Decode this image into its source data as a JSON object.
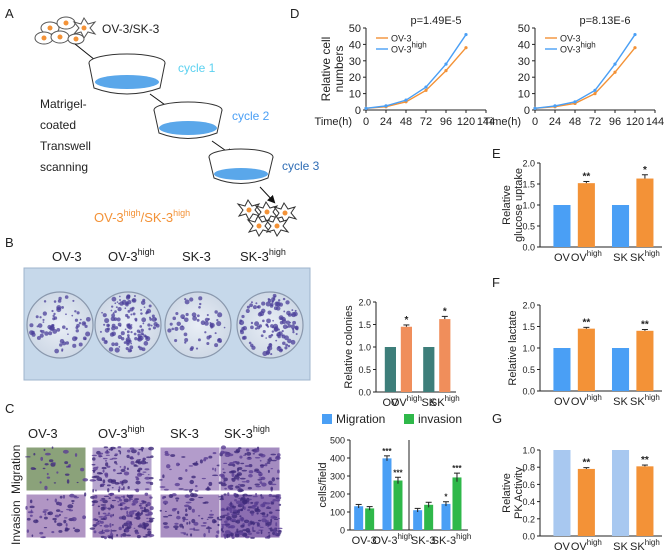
{
  "panels": {
    "A": "A",
    "B": "B",
    "C": "C",
    "D": "D",
    "E": "E",
    "F": "F",
    "G": "G"
  },
  "colors": {
    "blue": "#4a9ff5",
    "orange": "#f39237",
    "green": "#2fb84a",
    "teal": "#3d7e7a",
    "salmon": "#f08e5b",
    "lightblue": "#a8c8f0",
    "cyan": "#5bd1f0",
    "panelBg": "#c6d8ea"
  },
  "panelA": {
    "top_label": "OV-3/SK-3",
    "cycles": [
      "cycle 1",
      "cycle 2",
      "cycle 3"
    ],
    "side_text": [
      "Matrigel-",
      "coated",
      "Transwell",
      "scanning"
    ],
    "bottom_main": "OV-3",
    "bottom_sup": "high",
    "bottom_sep": "/SK-3",
    "bottom_sup2": "high"
  },
  "panelB": {
    "labels": [
      {
        "main": "OV-3",
        "sup": ""
      },
      {
        "main": "OV-3",
        "sup": "high"
      },
      {
        "main": "SK-3",
        "sup": ""
      },
      {
        "main": "SK-3",
        "sup": "high"
      }
    ]
  },
  "panelC": {
    "col_labels": [
      {
        "main": "OV-3",
        "sup": ""
      },
      {
        "main": "OV-3",
        "sup": "high"
      },
      {
        "main": "SK-3",
        "sup": ""
      },
      {
        "main": "SK-3",
        "sup": "high"
      }
    ],
    "row_labels": [
      "Migration",
      "Invasion"
    ]
  },
  "chart_data": [
    {
      "id": "B",
      "type": "bar",
      "ylabel": "Relative colonies",
      "ylim": [
        0,
        2
      ],
      "yticks": [
        "0.0",
        "0.5",
        "1.0",
        "1.5",
        "2.0"
      ],
      "categories": [
        {
          "main": "OV",
          "sup": ""
        },
        {
          "main": "OV",
          "sup": "high"
        },
        {
          "main": "SK",
          "sup": ""
        },
        {
          "main": "SK",
          "sup": "high"
        }
      ],
      "values": [
        1.0,
        1.45,
        1.0,
        1.62
      ],
      "errors": [
        0,
        0.04,
        0,
        0.06
      ],
      "sig": [
        "",
        "*",
        "",
        "*"
      ]
    },
    {
      "id": "C",
      "type": "bar",
      "ylabel": "cells/field",
      "ylim": [
        0,
        500
      ],
      "yticks": [
        "0",
        "100",
        "200",
        "300",
        "400",
        "500"
      ],
      "legend": [
        "Migration",
        "invasion"
      ],
      "categories": [
        {
          "main": "OV-3",
          "sup": ""
        },
        {
          "main": "OV-3",
          "sup": "high"
        },
        {
          "main": "SK-3",
          "sup": ""
        },
        {
          "main": "SK-3",
          "sup": "high"
        }
      ],
      "series": [
        {
          "name": "Migration",
          "values": [
            132,
            398,
            110,
            145
          ],
          "errors": [
            10,
            14,
            10,
            12
          ],
          "sig": [
            "",
            "***",
            "",
            "*"
          ]
        },
        {
          "name": "invasion",
          "values": [
            120,
            275,
            140,
            292
          ],
          "errors": [
            10,
            18,
            14,
            24
          ],
          "sig": [
            "",
            "***",
            "",
            "***"
          ]
        }
      ]
    },
    {
      "id": "D1",
      "type": "line",
      "title": "p=1.49E-5",
      "ylabel": "Relative cell numbers",
      "xlabel": "Time(h)",
      "x": [
        0,
        24,
        48,
        72,
        96,
        120
      ],
      "xticks": [
        "0",
        "24",
        "48",
        "72",
        "96",
        "120",
        "144"
      ],
      "xlim": [
        0,
        144
      ],
      "ylim": [
        0,
        50
      ],
      "yticks": [
        "0",
        "10",
        "20",
        "30",
        "40",
        "50"
      ],
      "series": [
        {
          "name": "OV-3",
          "sup": "",
          "values": [
            1,
            2,
            5,
            12,
            24,
            38
          ]
        },
        {
          "name": "OV-3",
          "sup": "high",
          "values": [
            1,
            2.5,
            6,
            14,
            28,
            46
          ]
        }
      ]
    },
    {
      "id": "D2",
      "type": "line",
      "title": "p=8.13E-6",
      "xlabel": "Time(h)",
      "x": [
        0,
        24,
        48,
        72,
        96,
        120
      ],
      "xticks": [
        "0",
        "24",
        "48",
        "72",
        "96",
        "120",
        "144"
      ],
      "xlim": [
        0,
        144
      ],
      "ylim": [
        0,
        50
      ],
      "yticks": [
        "0",
        "10",
        "20",
        "30",
        "40",
        "50"
      ],
      "series": [
        {
          "name": "OV-3",
          "sup": "",
          "values": [
            1,
            2,
            4,
            10,
            23,
            38
          ]
        },
        {
          "name": "OV-3",
          "sup": "high",
          "values": [
            1,
            2.5,
            5,
            12,
            28,
            46
          ]
        }
      ]
    },
    {
      "id": "E",
      "type": "bar",
      "ylabel": "Relative glucose uptake",
      "ylim": [
        0,
        2
      ],
      "yticks": [
        "0.0",
        "0.5",
        "1.0",
        "1.5",
        "2.0"
      ],
      "categories": [
        {
          "main": "OV",
          "sup": ""
        },
        {
          "main": "OV",
          "sup": "high"
        },
        {
          "main": "SK",
          "sup": ""
        },
        {
          "main": "SK",
          "sup": "high"
        }
      ],
      "values": [
        1.0,
        1.52,
        1.0,
        1.63
      ],
      "errors": [
        0,
        0.04,
        0,
        0.09
      ],
      "sig": [
        "",
        "**",
        "",
        "*"
      ]
    },
    {
      "id": "F",
      "type": "bar",
      "ylabel": "Relative lactate",
      "ylim": [
        0,
        2
      ],
      "yticks": [
        "0.0",
        "0.5",
        "1.0",
        "1.5",
        "2.0"
      ],
      "categories": [
        {
          "main": "OV",
          "sup": ""
        },
        {
          "main": "OV",
          "sup": "high"
        },
        {
          "main": "SK",
          "sup": ""
        },
        {
          "main": "SK",
          "sup": "high"
        }
      ],
      "values": [
        1.0,
        1.45,
        1.0,
        1.4
      ],
      "errors": [
        0,
        0.03,
        0,
        0.03
      ],
      "sig": [
        "",
        "**",
        "",
        "**"
      ]
    },
    {
      "id": "G",
      "type": "bar",
      "ylabel": "Relative PK Activity",
      "ylim": [
        0,
        1
      ],
      "yticks": [
        "0.0",
        "0.2",
        "0.4",
        "0.6",
        "0.8",
        "1.0"
      ],
      "categories": [
        {
          "main": "OV",
          "sup": ""
        },
        {
          "main": "OV",
          "sup": "high"
        },
        {
          "main": "SK",
          "sup": ""
        },
        {
          "main": "SK",
          "sup": "high"
        }
      ],
      "values": [
        1.0,
        0.78,
        1.0,
        0.81
      ],
      "errors": [
        0,
        0.015,
        0,
        0.015
      ],
      "sig": [
        "",
        "**",
        "",
        "**"
      ]
    }
  ]
}
